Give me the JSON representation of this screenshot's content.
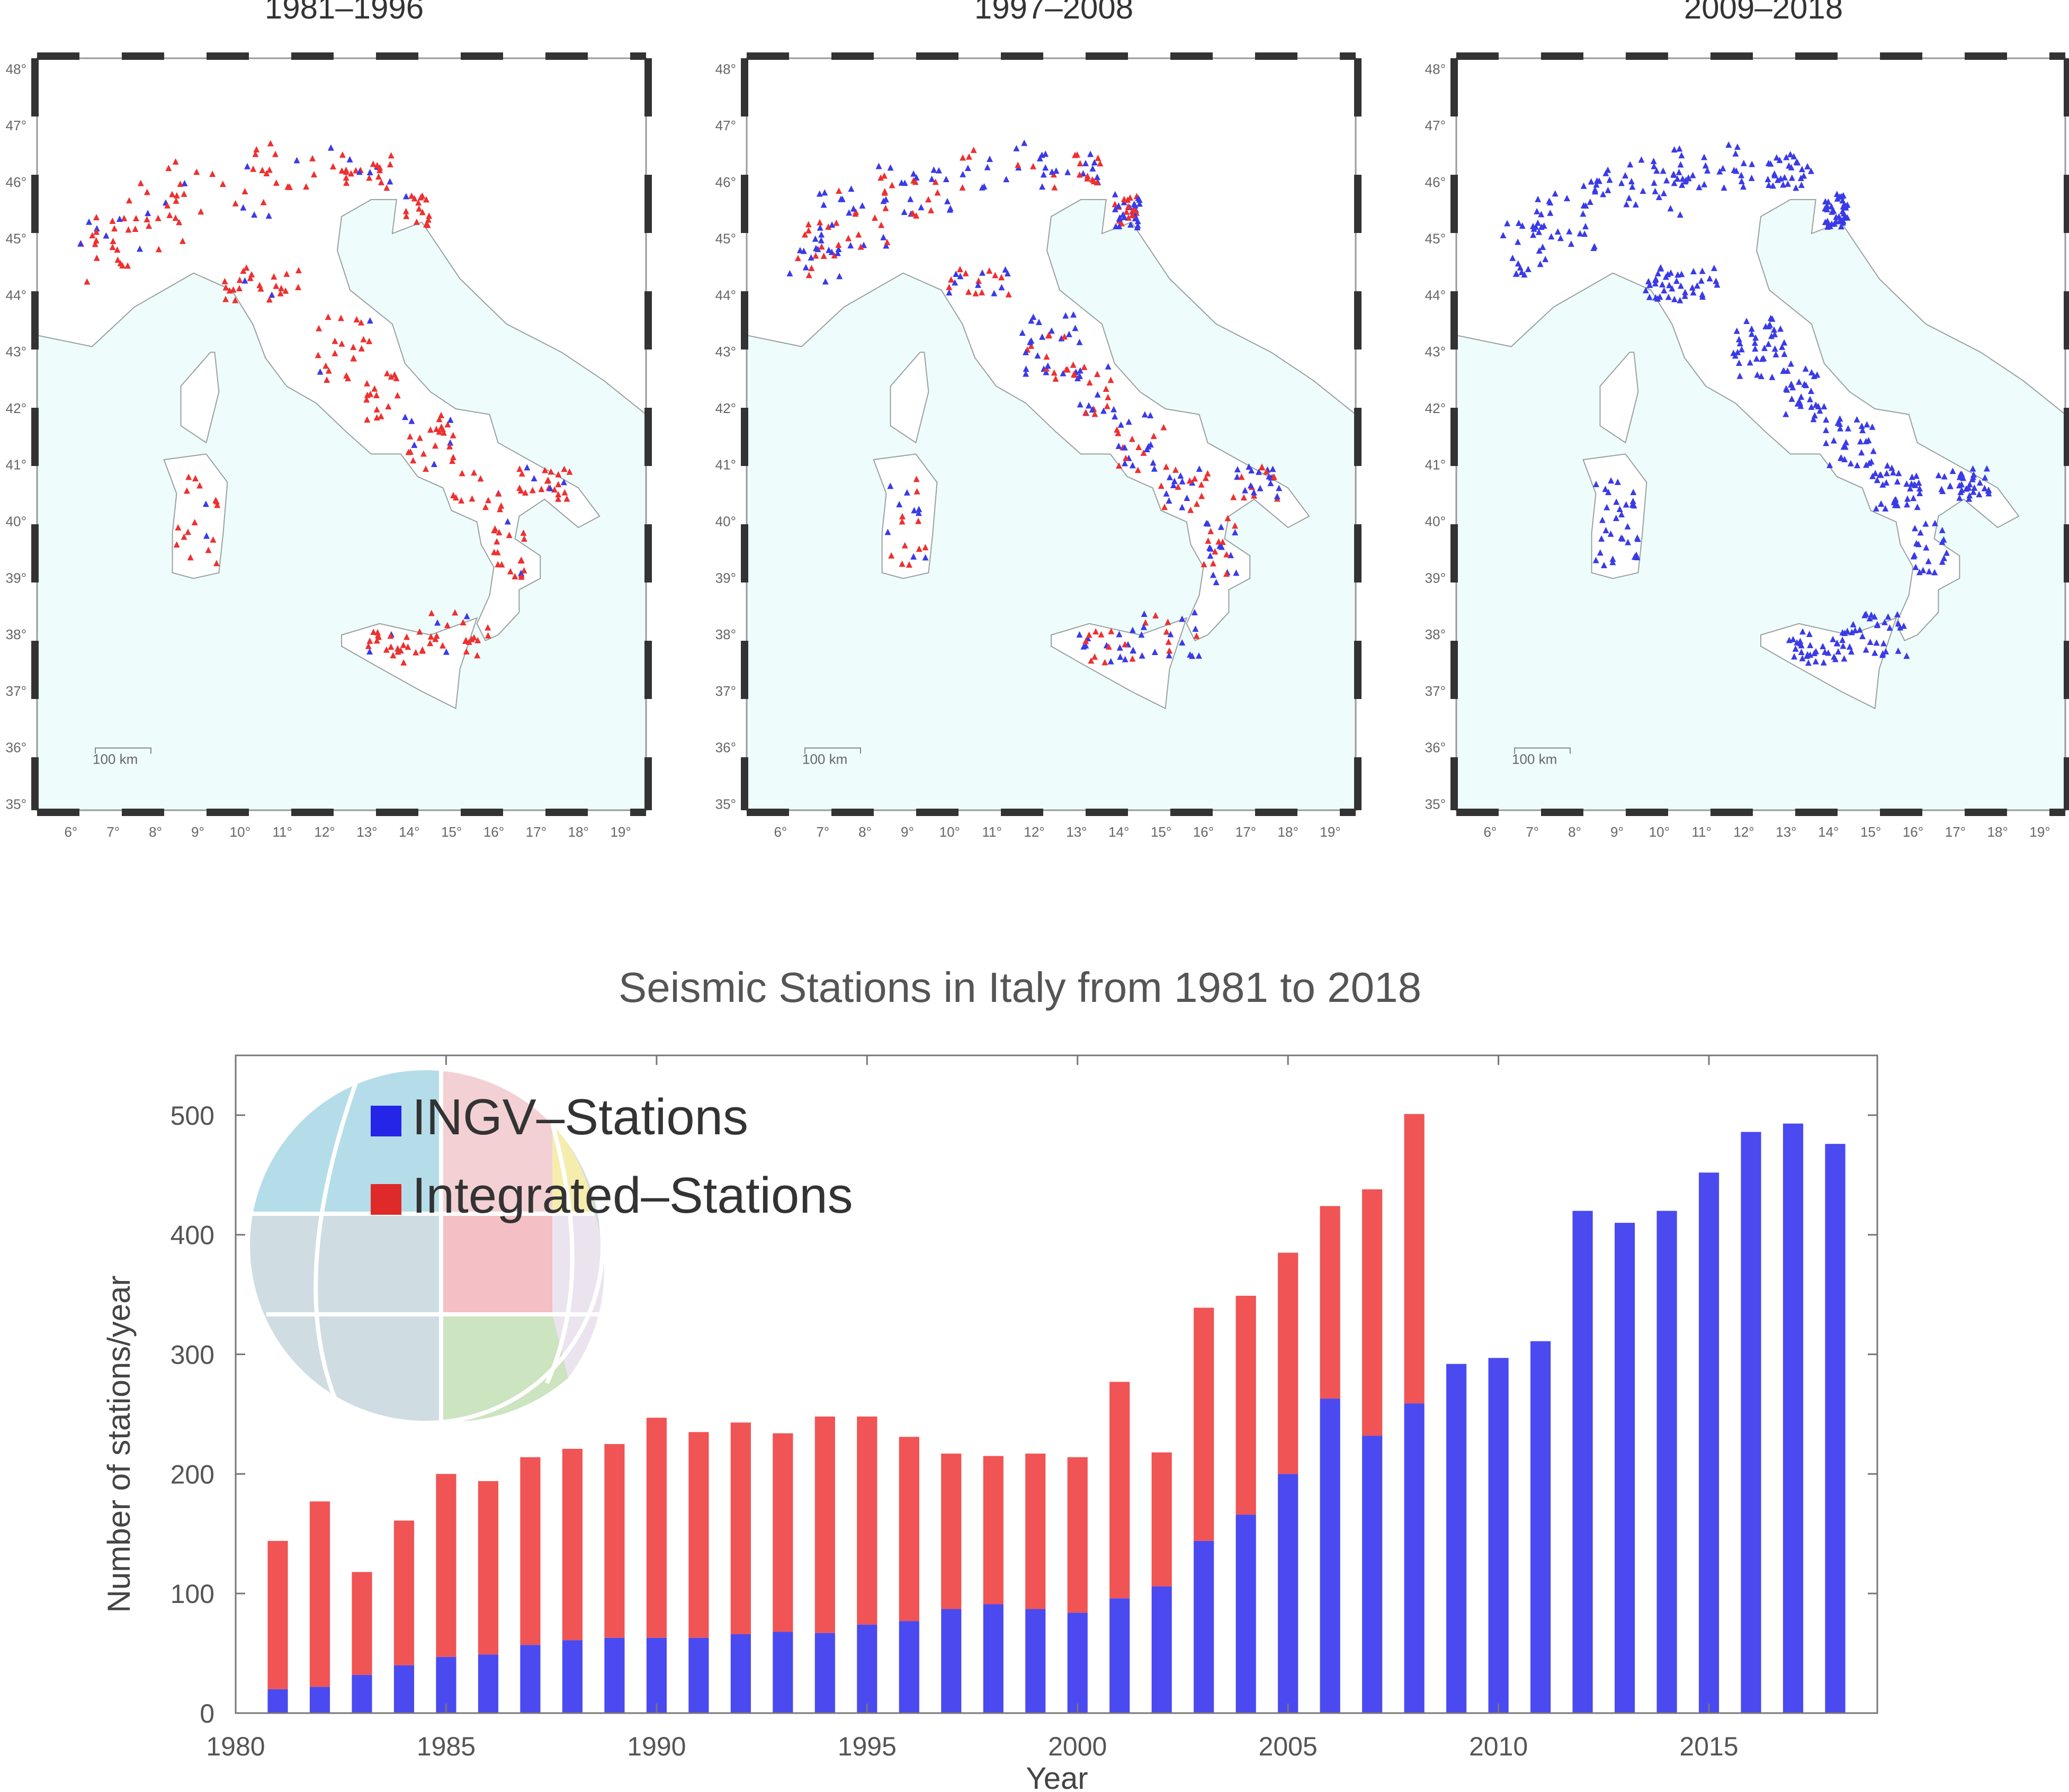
{
  "maps": {
    "panels": [
      {
        "title": "1981–1996"
      },
      {
        "title": "1997–2008"
      },
      {
        "title": "2009–2018"
      }
    ],
    "lat_ticks": [
      "48°",
      "47°",
      "46°",
      "45°",
      "44°",
      "43°",
      "42°",
      "41°",
      "40°",
      "39°",
      "38°",
      "37°",
      "36°",
      "35°"
    ],
    "lon_ticks": [
      "6°",
      "7°",
      "8°",
      "9°",
      "10°",
      "11°",
      "12°",
      "13°",
      "14°",
      "15°",
      "16°",
      "17°",
      "18°",
      "19°"
    ],
    "scale_label": "100 km",
    "colors": {
      "ingv": "#3a3ae8",
      "integrated": "#ee3030",
      "sea": "#eefcfc",
      "coast": "#9aa0a0"
    }
  },
  "chart_data": {
    "type": "bar",
    "stacked": true,
    "title": "Seismic Stations in Italy from 1981 to 2018",
    "xlabel": "Year",
    "ylabel": "Number of stations/year",
    "xlim": [
      1980,
      2019
    ],
    "ylim": [
      0,
      550
    ],
    "x_ticks": [
      1980,
      1985,
      1990,
      1995,
      2000,
      2005,
      2010,
      2015
    ],
    "y_ticks": [
      0,
      100,
      200,
      300,
      400,
      500
    ],
    "legend_position": "top-left",
    "years": [
      1981,
      1982,
      1983,
      1984,
      1985,
      1986,
      1987,
      1988,
      1989,
      1990,
      1991,
      1992,
      1993,
      1994,
      1995,
      1996,
      1997,
      1998,
      1999,
      2000,
      2001,
      2002,
      2003,
      2004,
      2005,
      2006,
      2007,
      2008,
      2009,
      2010,
      2011,
      2012,
      2013,
      2014,
      2015,
      2016,
      2017,
      2018
    ],
    "series": [
      {
        "name": "INGV–Stations",
        "color": "#4a4af0",
        "values": [
          20,
          22,
          32,
          40,
          47,
          49,
          57,
          61,
          63,
          63,
          63,
          66,
          68,
          67,
          74,
          77,
          87,
          91,
          87,
          84,
          96,
          106,
          144,
          166,
          200,
          263,
          232,
          259,
          292,
          297,
          311,
          420,
          410,
          420,
          452,
          486,
          493,
          476
        ]
      },
      {
        "name": "Integrated–Stations",
        "color": "#f05454",
        "values": [
          124,
          155,
          86,
          121,
          153,
          145,
          157,
          160,
          162,
          184,
          172,
          177,
          166,
          181,
          174,
          154,
          130,
          124,
          130,
          130,
          181,
          112,
          195,
          183,
          185,
          161,
          206,
          242,
          0,
          0,
          0,
          0,
          0,
          0,
          0,
          0,
          0,
          0
        ]
      }
    ]
  }
}
